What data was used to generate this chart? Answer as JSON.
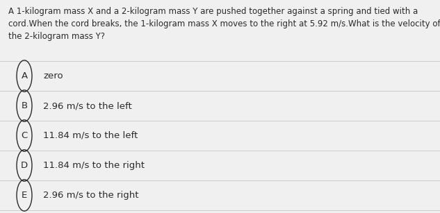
{
  "background_color": "#f0f0f0",
  "question_text_lines": [
    "A 1-kilogram mass X and a 2-kilogram mass Y are pushed together against a spring and tied with a",
    "cord.When the cord breaks, the 1-kilogram mass X moves to the right at 5.92 m/s.What is the velocity of",
    "the 2-kilogram mass Y?"
  ],
  "options": [
    {
      "label": "A",
      "text": "zero"
    },
    {
      "label": "B",
      "text": "2.96 m/s to the left"
    },
    {
      "label": "C",
      "text": "11.84 m/s to the left"
    },
    {
      "label": "D",
      "text": "11.84 m/s to the right"
    },
    {
      "label": "E",
      "text": "2.96 m/s to the right"
    }
  ],
  "question_fontsize": 8.5,
  "option_fontsize": 9.5,
  "text_color": "#2a2a2a",
  "separator_color": "#cccccc",
  "fig_width": 6.33,
  "fig_height": 3.07,
  "dpi": 100
}
